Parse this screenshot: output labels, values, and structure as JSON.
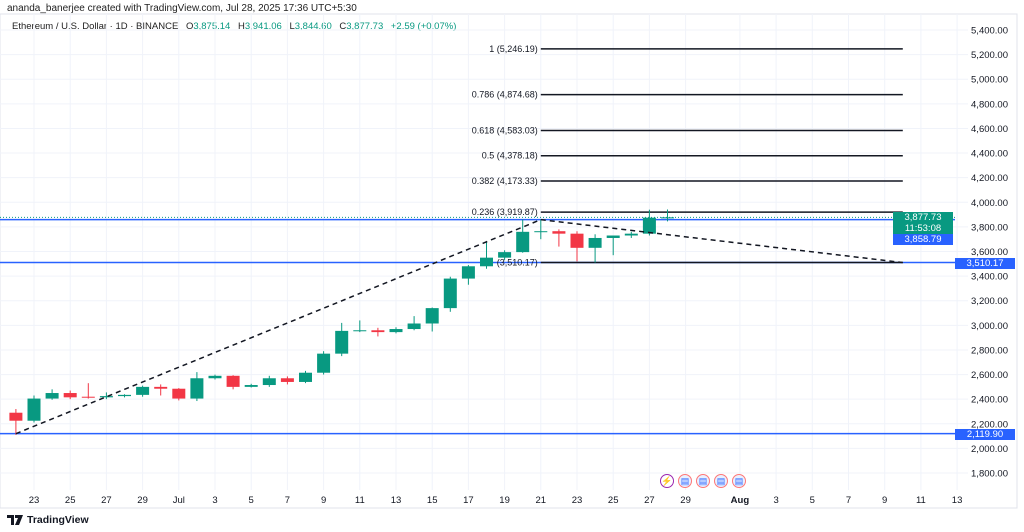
{
  "attribution": "ananda_banerjee created with TradingView.com, Jul 28, 2025 17:36 UTC+5:30",
  "symbol": {
    "name": "Ethereum / U.S. Dollar · 1D · BINANCE",
    "o_label": "O",
    "o": "3,875.14",
    "h_label": "H",
    "h": "3,941.06",
    "l_label": "L",
    "l": "3,844.60",
    "c_label": "C",
    "c": "3,877.73",
    "change": "+2.59 (+0.07%)"
  },
  "colors": {
    "up": "#089981",
    "down": "#f23645",
    "level_line": "#2962ff",
    "fib_line": "#131722",
    "grid": "#f0f3fa"
  },
  "badges": {
    "last_price": "3,877.73",
    "countdown": "11:53:08",
    "level_high": "3,858.79",
    "level_mid": "3,510.17",
    "level_low": "2,119.90"
  },
  "footer": {
    "logo_text": "TradingView"
  },
  "events": [
    "lightning-icon",
    "us-flag-icon",
    "us-flag-icon",
    "us-flag-icon",
    "us-flag-icon"
  ],
  "chart_data": {
    "type": "candlestick",
    "timeframe": "1D",
    "ylim": [
      1700,
      5500
    ],
    "y_ticks": [
      1800,
      2000,
      2200,
      2400,
      2600,
      2800,
      3000,
      3200,
      3400,
      3600,
      3800,
      4000,
      4200,
      4400,
      4600,
      4800,
      5000,
      5200,
      5400
    ],
    "y_tick_labels": [
      "1,800.00",
      "2,000.00",
      "2,200.00",
      "2,400.00",
      "2,600.00",
      "2,800.00",
      "3,000.00",
      "3,200.00",
      "3,400.00",
      "3,600.00",
      "3,800.00",
      "4,000.00",
      "4,200.00",
      "4,400.00",
      "4,600.00",
      "4,800.00",
      "5,000.00",
      "5,200.00",
      "5,400.00"
    ],
    "x_ticks": [
      {
        "date": "2025-06-23",
        "label": "23"
      },
      {
        "date": "2025-06-25",
        "label": "25"
      },
      {
        "date": "2025-06-27",
        "label": "27"
      },
      {
        "date": "2025-06-29",
        "label": "29"
      },
      {
        "date": "2025-07-01",
        "label": "Jul"
      },
      {
        "date": "2025-07-03",
        "label": "3"
      },
      {
        "date": "2025-07-05",
        "label": "5"
      },
      {
        "date": "2025-07-07",
        "label": "7"
      },
      {
        "date": "2025-07-09",
        "label": "9"
      },
      {
        "date": "2025-07-11",
        "label": "11"
      },
      {
        "date": "2025-07-13",
        "label": "13"
      },
      {
        "date": "2025-07-15",
        "label": "15"
      },
      {
        "date": "2025-07-17",
        "label": "17"
      },
      {
        "date": "2025-07-19",
        "label": "19"
      },
      {
        "date": "2025-07-21",
        "label": "21"
      },
      {
        "date": "2025-07-23",
        "label": "23"
      },
      {
        "date": "2025-07-25",
        "label": "25"
      },
      {
        "date": "2025-07-27",
        "label": "27"
      },
      {
        "date": "2025-07-29",
        "label": "29"
      },
      {
        "date": "2025-08-01",
        "label": "Aug"
      },
      {
        "date": "2025-08-03",
        "label": "3"
      },
      {
        "date": "2025-08-05",
        "label": "5"
      },
      {
        "date": "2025-08-07",
        "label": "7"
      },
      {
        "date": "2025-08-09",
        "label": "9"
      },
      {
        "date": "2025-08-11",
        "label": "11"
      },
      {
        "date": "2025-08-13",
        "label": "13"
      }
    ],
    "candles": [
      {
        "date": "2025-06-22",
        "o": 2290,
        "h": 2320,
        "l": 2110,
        "c": 2225
      },
      {
        "date": "2025-06-23",
        "o": 2225,
        "h": 2430,
        "l": 2210,
        "c": 2405
      },
      {
        "date": "2025-06-24",
        "o": 2405,
        "h": 2480,
        "l": 2395,
        "c": 2450
      },
      {
        "date": "2025-06-25",
        "o": 2450,
        "h": 2470,
        "l": 2400,
        "c": 2415
      },
      {
        "date": "2025-06-26",
        "o": 2420,
        "h": 2530,
        "l": 2405,
        "c": 2415
      },
      {
        "date": "2025-06-27",
        "o": 2415,
        "h": 2455,
        "l": 2400,
        "c": 2425
      },
      {
        "date": "2025-06-28",
        "o": 2425,
        "h": 2440,
        "l": 2415,
        "c": 2435
      },
      {
        "date": "2025-06-29",
        "o": 2435,
        "h": 2510,
        "l": 2420,
        "c": 2500
      },
      {
        "date": "2025-06-30",
        "o": 2500,
        "h": 2520,
        "l": 2430,
        "c": 2485
      },
      {
        "date": "2025-07-01",
        "o": 2485,
        "h": 2490,
        "l": 2390,
        "c": 2405
      },
      {
        "date": "2025-07-02",
        "o": 2405,
        "h": 2620,
        "l": 2385,
        "c": 2570
      },
      {
        "date": "2025-07-03",
        "o": 2570,
        "h": 2600,
        "l": 2560,
        "c": 2590
      },
      {
        "date": "2025-07-04",
        "o": 2590,
        "h": 2595,
        "l": 2480,
        "c": 2500
      },
      {
        "date": "2025-07-05",
        "o": 2500,
        "h": 2525,
        "l": 2495,
        "c": 2515
      },
      {
        "date": "2025-07-06",
        "o": 2515,
        "h": 2590,
        "l": 2500,
        "c": 2570
      },
      {
        "date": "2025-07-07",
        "o": 2570,
        "h": 2585,
        "l": 2520,
        "c": 2540
      },
      {
        "date": "2025-07-08",
        "o": 2540,
        "h": 2630,
        "l": 2530,
        "c": 2615
      },
      {
        "date": "2025-07-09",
        "o": 2615,
        "h": 2790,
        "l": 2600,
        "c": 2770
      },
      {
        "date": "2025-07-10",
        "o": 2770,
        "h": 3020,
        "l": 2750,
        "c": 2955
      },
      {
        "date": "2025-07-11",
        "o": 2955,
        "h": 3040,
        "l": 2945,
        "c": 2960
      },
      {
        "date": "2025-07-12",
        "o": 2960,
        "h": 2980,
        "l": 2910,
        "c": 2945
      },
      {
        "date": "2025-07-13",
        "o": 2945,
        "h": 2985,
        "l": 2935,
        "c": 2970
      },
      {
        "date": "2025-07-14",
        "o": 2970,
        "h": 3075,
        "l": 2960,
        "c": 3015
      },
      {
        "date": "2025-07-15",
        "o": 3015,
        "h": 3145,
        "l": 2950,
        "c": 3140
      },
      {
        "date": "2025-07-16",
        "o": 3140,
        "h": 3395,
        "l": 3110,
        "c": 3380
      },
      {
        "date": "2025-07-17",
        "o": 3380,
        "h": 3490,
        "l": 3330,
        "c": 3480
      },
      {
        "date": "2025-07-18",
        "o": 3480,
        "h": 3680,
        "l": 3460,
        "c": 3550
      },
      {
        "date": "2025-07-19",
        "o": 3550,
        "h": 3610,
        "l": 3530,
        "c": 3595
      },
      {
        "date": "2025-07-20",
        "o": 3595,
        "h": 3860,
        "l": 3590,
        "c": 3760
      },
      {
        "date": "2025-07-21",
        "o": 3760,
        "h": 3860,
        "l": 3700,
        "c": 3765
      },
      {
        "date": "2025-07-22",
        "o": 3765,
        "h": 3780,
        "l": 3640,
        "c": 3745
      },
      {
        "date": "2025-07-23",
        "o": 3745,
        "h": 3765,
        "l": 3520,
        "c": 3630
      },
      {
        "date": "2025-07-24",
        "o": 3630,
        "h": 3740,
        "l": 3510,
        "c": 3710
      },
      {
        "date": "2025-07-25",
        "o": 3710,
        "h": 3730,
        "l": 3570,
        "c": 3730
      },
      {
        "date": "2025-07-26",
        "o": 3730,
        "h": 3760,
        "l": 3710,
        "c": 3745
      },
      {
        "date": "2025-07-27",
        "o": 3745,
        "h": 3940,
        "l": 3730,
        "c": 3875
      },
      {
        "date": "2025-07-28",
        "o": 3875.14,
        "h": 3941.06,
        "l": 3844.6,
        "c": 3877.73
      }
    ],
    "horizontal_levels": [
      3858.79,
      3510.17,
      2119.9
    ],
    "last_price": 3877.73,
    "fib_levels": [
      {
        "ratio": "1",
        "price": 5246.19,
        "label": "1 (5,246.19)"
      },
      {
        "ratio": "0.786",
        "price": 4874.68,
        "label": "0.786 (4,874.68)"
      },
      {
        "ratio": "0.618",
        "price": 4583.03,
        "label": "0.618 (4,583.03)"
      },
      {
        "ratio": "0.5",
        "price": 4378.18,
        "label": "0.5 (4,378.18)"
      },
      {
        "ratio": "0.382",
        "price": 4173.33,
        "label": "0.382 (4,173.33)"
      },
      {
        "ratio": "0.236",
        "price": 3919.87,
        "label": "0.236 (3,919.87)"
      },
      {
        "ratio": "0",
        "price": 3510.17,
        "label": "(3,510.17)"
      }
    ],
    "fib_range": {
      "start": "2025-07-21",
      "end": "2025-08-10"
    },
    "trend_lines": [
      {
        "from": {
          "date": "2025-06-22",
          "price": 2119.9
        },
        "to": {
          "date": "2025-07-21",
          "price": 3858.79
        }
      },
      {
        "from": {
          "date": "2025-07-21",
          "price": 3858.79
        },
        "to": {
          "date": "2025-08-10",
          "price": 3510.17
        }
      }
    ]
  }
}
